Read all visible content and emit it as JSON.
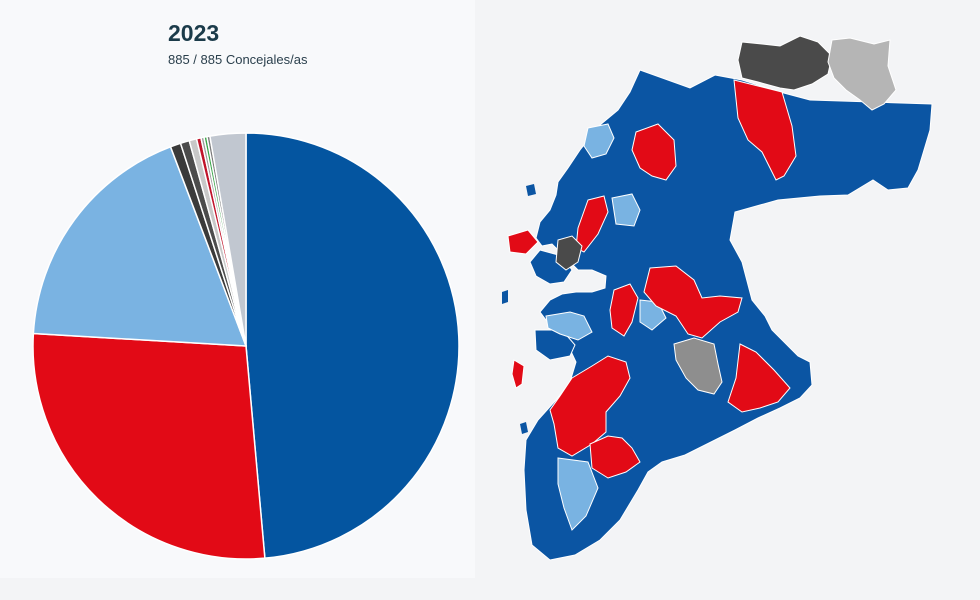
{
  "header": {
    "title": "2023",
    "subtitle": "885 / 885 Concejales/as"
  },
  "chart_data": {
    "type": "pie",
    "title": "2023",
    "subtitle": "885 / 885 Concejales/as",
    "total": 885,
    "slices": [
      {
        "value": 430,
        "color": "#0455a0"
      },
      {
        "value": 242,
        "color": "#e20a16"
      },
      {
        "value": 162,
        "color": "#7ab3e2"
      },
      {
        "value": 7,
        "color": "#3a3a3a"
      },
      {
        "value": 6,
        "color": "#4c4c4c"
      },
      {
        "value": 5,
        "color": "#c8c8c8"
      },
      {
        "value": 3,
        "color": "#c0142a"
      },
      {
        "value": 2,
        "color": "#9c9c9c"
      },
      {
        "value": 2,
        "color": "#3aa64a"
      },
      {
        "value": 2,
        "color": "#7a7a7a"
      },
      {
        "value": 24,
        "color": "#c1c7d0"
      }
    ]
  },
  "map": {
    "colors": {
      "blue": "#0b55a3",
      "red": "#e20a16",
      "lightblue": "#79b3e2",
      "darkgray": "#4a4a4a",
      "lightgray": "#b5b5b5",
      "midgray": "#8e8e8e"
    }
  }
}
